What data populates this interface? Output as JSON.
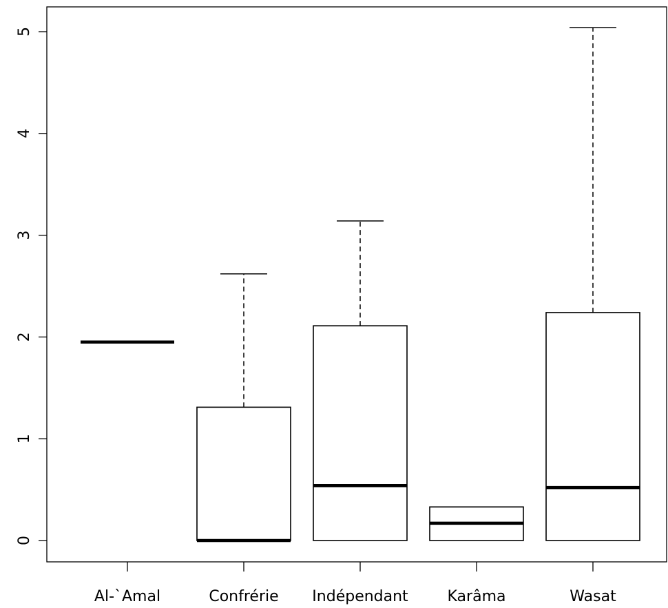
{
  "chart_data": {
    "type": "boxplot",
    "title": "",
    "xlabel": "",
    "ylabel": "",
    "ylim": [
      -0.2,
      5.25
    ],
    "yticks": [
      0,
      1,
      2,
      3,
      4,
      5
    ],
    "categories": [
      "Al-`Amal",
      "Confrérie",
      "Indépendant",
      "Karâma",
      "Wasat"
    ],
    "boxes": [
      {
        "name": "Al-`Amal",
        "min": 1.95,
        "q1": 1.95,
        "median": 1.95,
        "q3": 1.95,
        "max": 1.95
      },
      {
        "name": "Confrérie",
        "min": 0,
        "q1": 0,
        "median": 0,
        "q3": 1.31,
        "max": 2.62
      },
      {
        "name": "Indépendant",
        "min": 0,
        "q1": 0,
        "median": 0.54,
        "q3": 2.11,
        "max": 3.14
      },
      {
        "name": "Karâma",
        "min": 0,
        "q1": 0,
        "median": 0.17,
        "q3": 0.33,
        "max": 0.33
      },
      {
        "name": "Wasat",
        "min": 0,
        "q1": 0,
        "median": 0.52,
        "q3": 2.24,
        "max": 5.04
      }
    ],
    "grid": false,
    "legend": "none"
  }
}
